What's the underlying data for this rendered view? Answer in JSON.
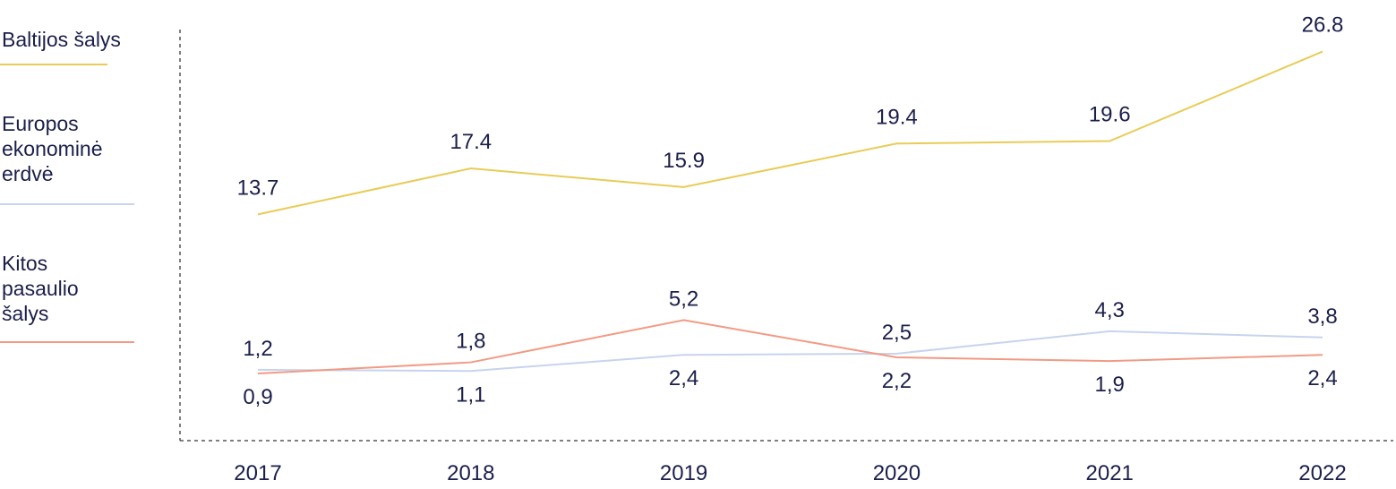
{
  "chart_data": {
    "type": "line",
    "categories": [
      "2017",
      "2018",
      "2019",
      "2020",
      "2021",
      "2022"
    ],
    "series": [
      {
        "name": "Baltijos šalys",
        "color": "#e8cc57",
        "values": [
          13.7,
          17.4,
          15.9,
          19.4,
          19.6,
          26.8
        ],
        "labels": [
          "13.7",
          "17.4",
          "15.9",
          "19.4",
          "19.6",
          "26.8"
        ]
      },
      {
        "name": "Europos\nekonominė\nerdvė",
        "color": "#c7d4ee",
        "values": [
          1.2,
          1.1,
          2.4,
          2.5,
          4.3,
          3.8
        ],
        "labels": [
          "1,2",
          "1,1",
          "2,4",
          "2,5",
          "4,3",
          "3,8"
        ]
      },
      {
        "name": "Kitos\npasaulio\nšalys",
        "color": "#f29a84",
        "values": [
          0.9,
          1.8,
          5.2,
          2.2,
          1.9,
          2.4
        ],
        "labels": [
          "0,9",
          "1,8",
          "5,2",
          "2,2",
          "1,9",
          "2,4"
        ]
      }
    ],
    "ylim": [
      -4.5,
      28.5
    ],
    "grid": false,
    "legend_position": "left"
  }
}
